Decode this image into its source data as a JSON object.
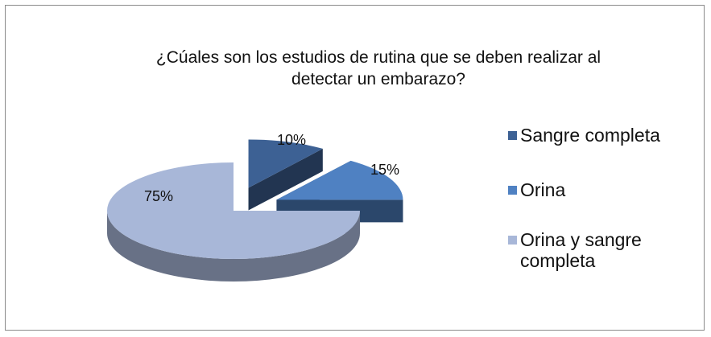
{
  "chart_data": {
    "type": "pie",
    "title": "¿Cúales son los estudios de rutina que se deben realizar al detectar un embarazo?",
    "categories": [
      "Sangre completa",
      "Orina",
      "Orina y sangre completa"
    ],
    "values": [
      10,
      15,
      75
    ],
    "value_labels": [
      "10%",
      "15%",
      "75%"
    ],
    "colors": [
      "#3d6194",
      "#4f81c2",
      "#a8b7d8"
    ],
    "legend": "right"
  }
}
